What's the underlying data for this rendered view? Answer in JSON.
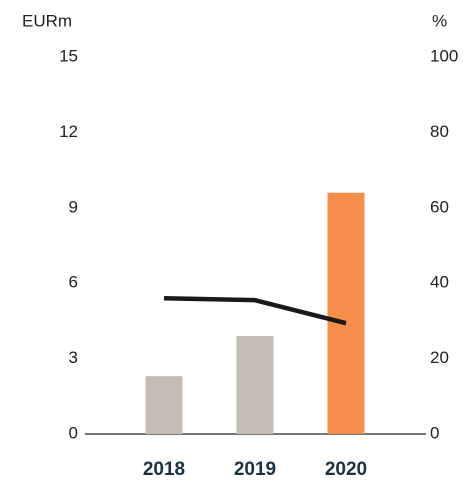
{
  "chart_data": {
    "type": "bar_line",
    "y_label": "EURm",
    "y2_label": "%",
    "categories": [
      "2018",
      "2019",
      "2020"
    ],
    "series": [
      {
        "name": "EURm",
        "type": "bar",
        "colors": [
          "#c5bdb4",
          "#c5bdb4",
          "#f58d4b"
        ],
        "values": [
          2.3,
          3.9,
          9.6
        ]
      },
      {
        "name": "%",
        "type": "line",
        "axis": "y2",
        "color": "#1a1a1a",
        "values": [
          36,
          35.5,
          29.4
        ]
      }
    ],
    "ylim": [
      0,
      15
    ],
    "yticks": [
      0,
      3,
      6,
      9,
      12,
      15
    ],
    "y2lim": [
      0,
      100
    ],
    "y2ticks": [
      0,
      20,
      40,
      60,
      80,
      100
    ]
  }
}
